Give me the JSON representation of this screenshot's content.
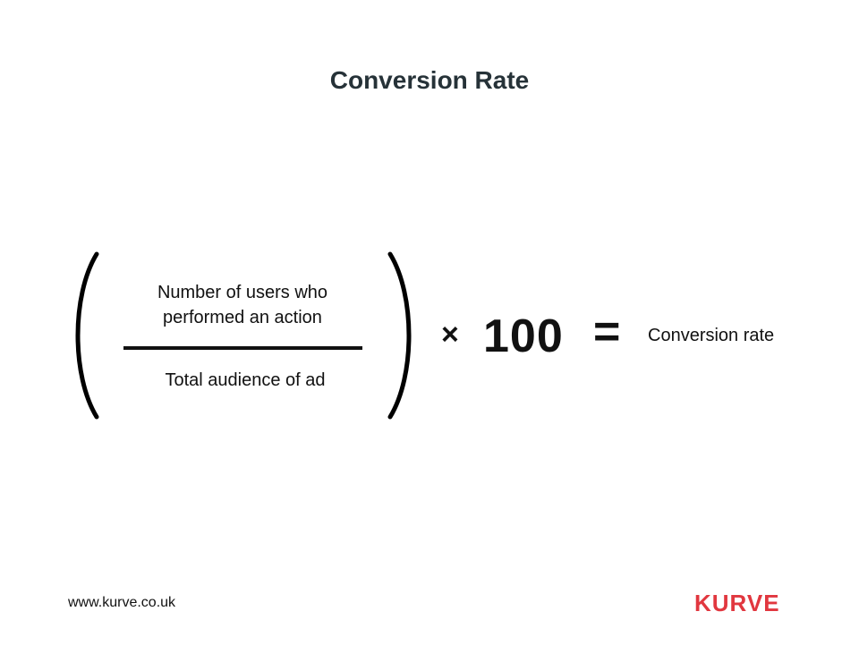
{
  "title": "Conversion Rate",
  "formula": {
    "numerator": "Number of users who performed an action",
    "denominator": "Total audience of ad",
    "operator": "×",
    "multiplier": "100",
    "equals": "=",
    "result": "Conversion rate"
  },
  "footer": {
    "website": "www.kurve.co.uk",
    "logo": "KURVE"
  },
  "colors": {
    "title": "#263238",
    "brand": "#e1373f",
    "text": "#111111"
  }
}
